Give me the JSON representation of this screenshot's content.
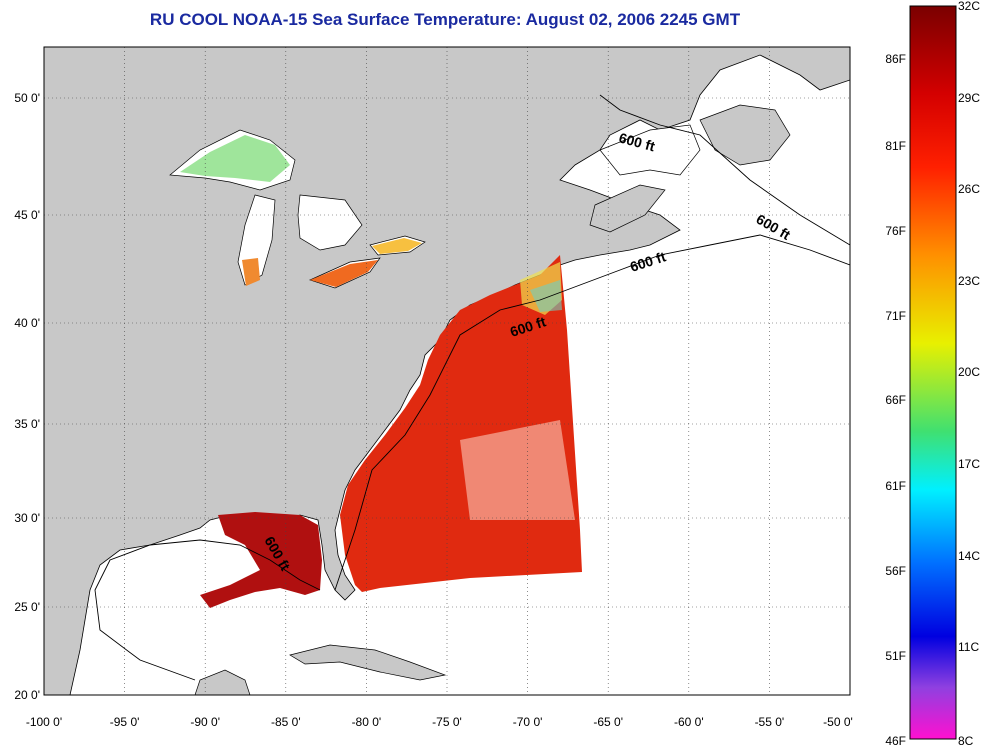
{
  "title": "RU COOL  NOAA-15  Sea Surface Temperature:  August 02, 2006 2245 GMT",
  "map": {
    "lon_range": [
      -100,
      -50
    ],
    "lat_range": [
      20,
      52.5
    ],
    "lon_ticks": [
      "-100 0'",
      "-95 0'",
      "-90 0'",
      "-85 0'",
      "-80 0'",
      "-75 0'",
      "-70 0'",
      "-65 0'",
      "-60 0'",
      "-55 0'",
      "-50 0'"
    ],
    "lat_ticks": [
      "50 0'",
      "45 0'",
      "40 0'",
      "35 0'",
      "30 0'",
      "25 0'",
      "20 0'"
    ],
    "contour_labels": [
      "600 ft",
      "600 ft",
      "600 ft",
      "600 ft",
      "600 ft"
    ],
    "land_color": "#c8c8c8",
    "ocean_color": "#ffffff",
    "grid": "dotted"
  },
  "colorbar": {
    "celsius_labels": [
      "32C",
      "29C",
      "26C",
      "23C",
      "20C",
      "17C",
      "14C",
      "11C",
      "8C"
    ],
    "fahrenheit_labels": [
      "86F",
      "81F",
      "76F",
      "71F",
      "66F",
      "61F",
      "56F",
      "51F",
      "46F"
    ],
    "range_c": [
      8,
      32
    ],
    "range_f": [
      46,
      86
    ]
  },
  "colors": {
    "title": "#1a2aa0",
    "sst_warm": "#e82a0a",
    "sst_hot": "#a80d0d"
  }
}
